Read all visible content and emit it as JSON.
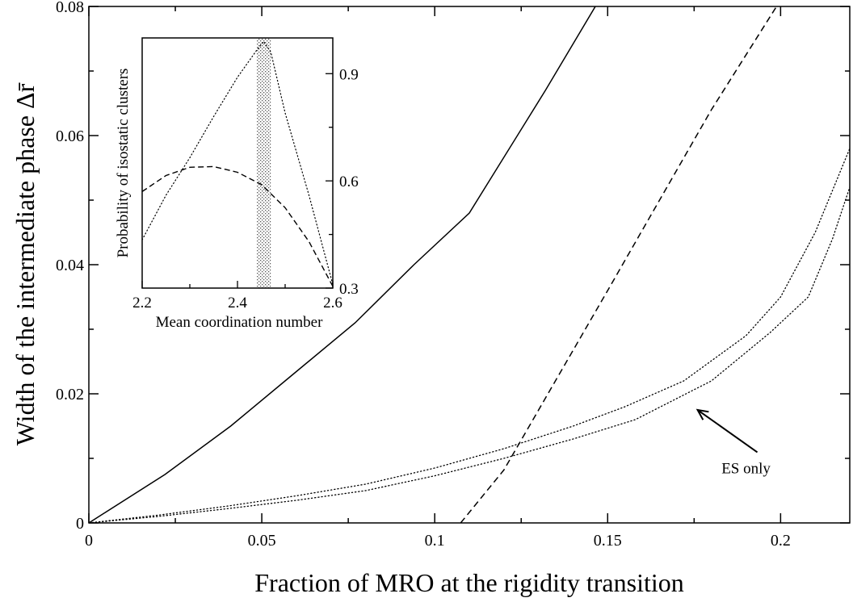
{
  "chart_data": [
    {
      "type": "line",
      "title": "",
      "xlabel": "Fraction of MRO at the rigidity transition",
      "ylabel": "Width of the intermediate phase Δr̄",
      "xlim": [
        0,
        0.22
      ],
      "ylim": [
        0,
        0.08
      ],
      "x_ticks": [
        0,
        0.05,
        0.1,
        0.15,
        0.2
      ],
      "x_tick_labels": [
        "0",
        "0.05",
        "0.1",
        "0.15",
        "0.2"
      ],
      "y_ticks": [
        0,
        0.02,
        0.04,
        0.06,
        0.08
      ],
      "y_tick_labels": [
        "0",
        "0.02",
        "0.04",
        "0.06",
        "0.08"
      ],
      "grid": false,
      "legend": "none",
      "series": [
        {
          "style": "solid",
          "x": [
            0,
            0.022,
            0.041,
            0.059,
            0.077,
            0.094,
            0.11,
            0.132,
            0.147
          ],
          "y": [
            0,
            0.0075,
            0.015,
            0.023,
            0.031,
            0.04,
            0.048,
            0.067,
            0.0805
          ]
        },
        {
          "style": "dashed",
          "x": [
            0.1075,
            0.12,
            0.15,
            0.18,
            0.2
          ],
          "y": [
            0,
            0.0082,
            0.036,
            0.064,
            0.081
          ]
        },
        {
          "style": "dotted",
          "x": [
            0,
            0.02,
            0.04,
            0.06,
            0.08,
            0.1,
            0.12,
            0.14,
            0.155,
            0.172,
            0.19,
            0.2,
            0.21,
            0.22
          ],
          "y": [
            0,
            0.0012,
            0.0026,
            0.0042,
            0.006,
            0.0085,
            0.0115,
            0.015,
            0.018,
            0.022,
            0.029,
            0.035,
            0.045,
            0.058
          ]
        },
        {
          "style": "dotted",
          "x": [
            0,
            0.02,
            0.04,
            0.06,
            0.08,
            0.1,
            0.12,
            0.14,
            0.158,
            0.18,
            0.197,
            0.208,
            0.215,
            0.22
          ],
          "y": [
            0,
            0.001,
            0.0022,
            0.0035,
            0.005,
            0.0073,
            0.01,
            0.013,
            0.016,
            0.022,
            0.0295,
            0.035,
            0.044,
            0.052
          ]
        }
      ],
      "annotations": [
        {
          "text": "ES only",
          "x": 0.19,
          "y": 0.0077,
          "arrow_to": [
            0.176,
            0.0175
          ]
        }
      ]
    },
    {
      "type": "line",
      "title": "",
      "xlabel": "Mean coordination number",
      "ylabel": "Probability of isostatic clusters",
      "xlim": [
        2.2,
        2.6
      ],
      "ylim": [
        0.3,
        1.0
      ],
      "x_ticks": [
        2.2,
        2.4,
        2.6
      ],
      "x_tick_labels": [
        "2.2",
        "2.4",
        "2.6"
      ],
      "y_ticks": [
        0.3,
        0.6,
        0.9
      ],
      "y_tick_labels": [
        "0.3",
        "0.6",
        "0.9"
      ],
      "y_axis_side": "right",
      "grid": false,
      "shaded_band": [
        2.44,
        2.47
      ],
      "series": [
        {
          "style": "dotted",
          "x": [
            2.2,
            2.25,
            2.3,
            2.35,
            2.4,
            2.44,
            2.455,
            2.47,
            2.5,
            2.55,
            2.6
          ],
          "y": [
            0.435,
            0.56,
            0.665,
            0.78,
            0.89,
            0.965,
            0.99,
            0.96,
            0.79,
            0.56,
            0.31
          ]
        },
        {
          "style": "dashed",
          "x": [
            2.2,
            2.25,
            2.3,
            2.35,
            2.4,
            2.45,
            2.5,
            2.55,
            2.6
          ],
          "y": [
            0.57,
            0.615,
            0.638,
            0.64,
            0.624,
            0.59,
            0.525,
            0.43,
            0.305
          ]
        }
      ]
    }
  ]
}
